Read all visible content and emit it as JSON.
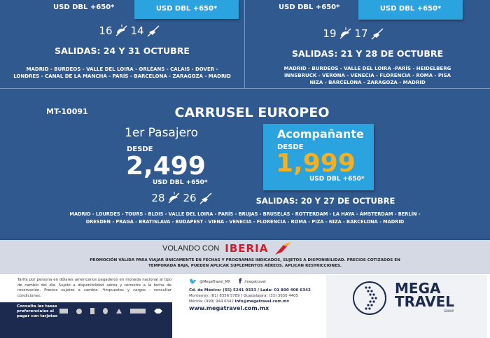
{
  "top_left": {
    "price_unit": "USD DBL +650*",
    "companion_unit": "USD DBL +650*",
    "days": "16",
    "nights": "14",
    "departures": "SALIDAS: 24 Y 31  OCTUBRE",
    "route": [
      "MADRID - BURDEOS - VALLE DEL LOIRA - ORLÉANS - CALAIS - DOVER -",
      "LONDRES - CANAL DE LA MANCHA - PARÍS - BARCELONA - ZARAGOZA - MADRID"
    ]
  },
  "top_right": {
    "price_unit": "USD DBL +650*",
    "companion_unit": "USD DBL +650*",
    "days": "19",
    "nights": "17",
    "departures": "SALIDAS: 21 Y 28 DE OCTUBRE",
    "route": [
      "MADRID - BURDEOS - VALLE DEL LOIRA -PARÍS - HEIDELBERG",
      "INNSBRUCK - VERONA - VENECIA - FLORENCIA - ROMA - PISA",
      "NIZA - BARCELONA - ZARAGOZA - MADRID"
    ]
  },
  "main": {
    "code": "MT-10091",
    "title": "CARRUSEL EUROPEO",
    "first_label": "1er Pasajero",
    "first_desde": "DESDE",
    "first_price": "2,499",
    "first_unit": "USD DBL +650*",
    "companion_label": "Acompañante",
    "companion_desde": "DESDE",
    "companion_price": "1,999",
    "companion_unit": "USD DBL +650*",
    "days": "28",
    "nights": "26",
    "departures": "SALIDAS: 20 Y 27 DE OCTUBRE",
    "route": [
      "MADRID - LOURDES - TOURS - BLOIS - VALLE DEL LOIRA - PARÍS - BRUJAS - BRUSELAS - ROTTERDAM - LA HAYA - ÁMSTERDAM - BERLÍN -",
      "DRESDEN - PRAGA - BRATISLAVA - BUDAPEST - VIENA - VENECIA - FLORENCIA - ROMA - PIZA - NIZA - BARCELONA - MADRID"
    ]
  },
  "airline": {
    "prefix": "VOLANDO CON",
    "name": "IBERIA",
    "disclaimer": [
      "PROMOCIÓN VÁLIDA PARA VIAJAR ÚNICAMENTE EN FECHAS Y PROGRAMAS INDICADOS, SUJETOS A DISPONIBILIDAD. PRECIOS COTIZADOS EN",
      "TEMPORADA BAJA, PUEDEN APLICAR SUPLEMENTOS AÉREOS. APLICAN RESTRICCIONES."
    ]
  },
  "footer": {
    "terms": "Tarifa por persona en dólares americanos pagaderos en moneda nacional al tipo de cambio del día. Sujeto a disponibilidad aérea y terrestre a la fecha de reservación. Precios sujetos a cambio. *impuestos y cargos - consultar condiciones.",
    "cards_text": "Consulta las tasas preferenciales al pagar con tarjetas",
    "twitter": "@MegaTravel_MX",
    "facebook": "/megatravel",
    "phone_cdmx": "Cd. de México: (55) 5241 0333 / Lada: 01 800 400 6342",
    "phone_mty": "Monterrey: (81) 8356 5789 / Guadalajara: (33) 3630 4405",
    "phone_merida": "Mérida: (999) 944 6342",
    "email": "info@megatravel.com.mx",
    "website": "www.megatravel.com.mx",
    "logo_line1": "MEGA",
    "logo_line2": "TRAVEL",
    "logo_line3": "GROUP"
  },
  "colors": {
    "background": "#30598f",
    "box": "#2ba3de",
    "price_accent": "#f6b01f",
    "iberia_red": "#d7192d",
    "navy": "#1c2a4f"
  }
}
